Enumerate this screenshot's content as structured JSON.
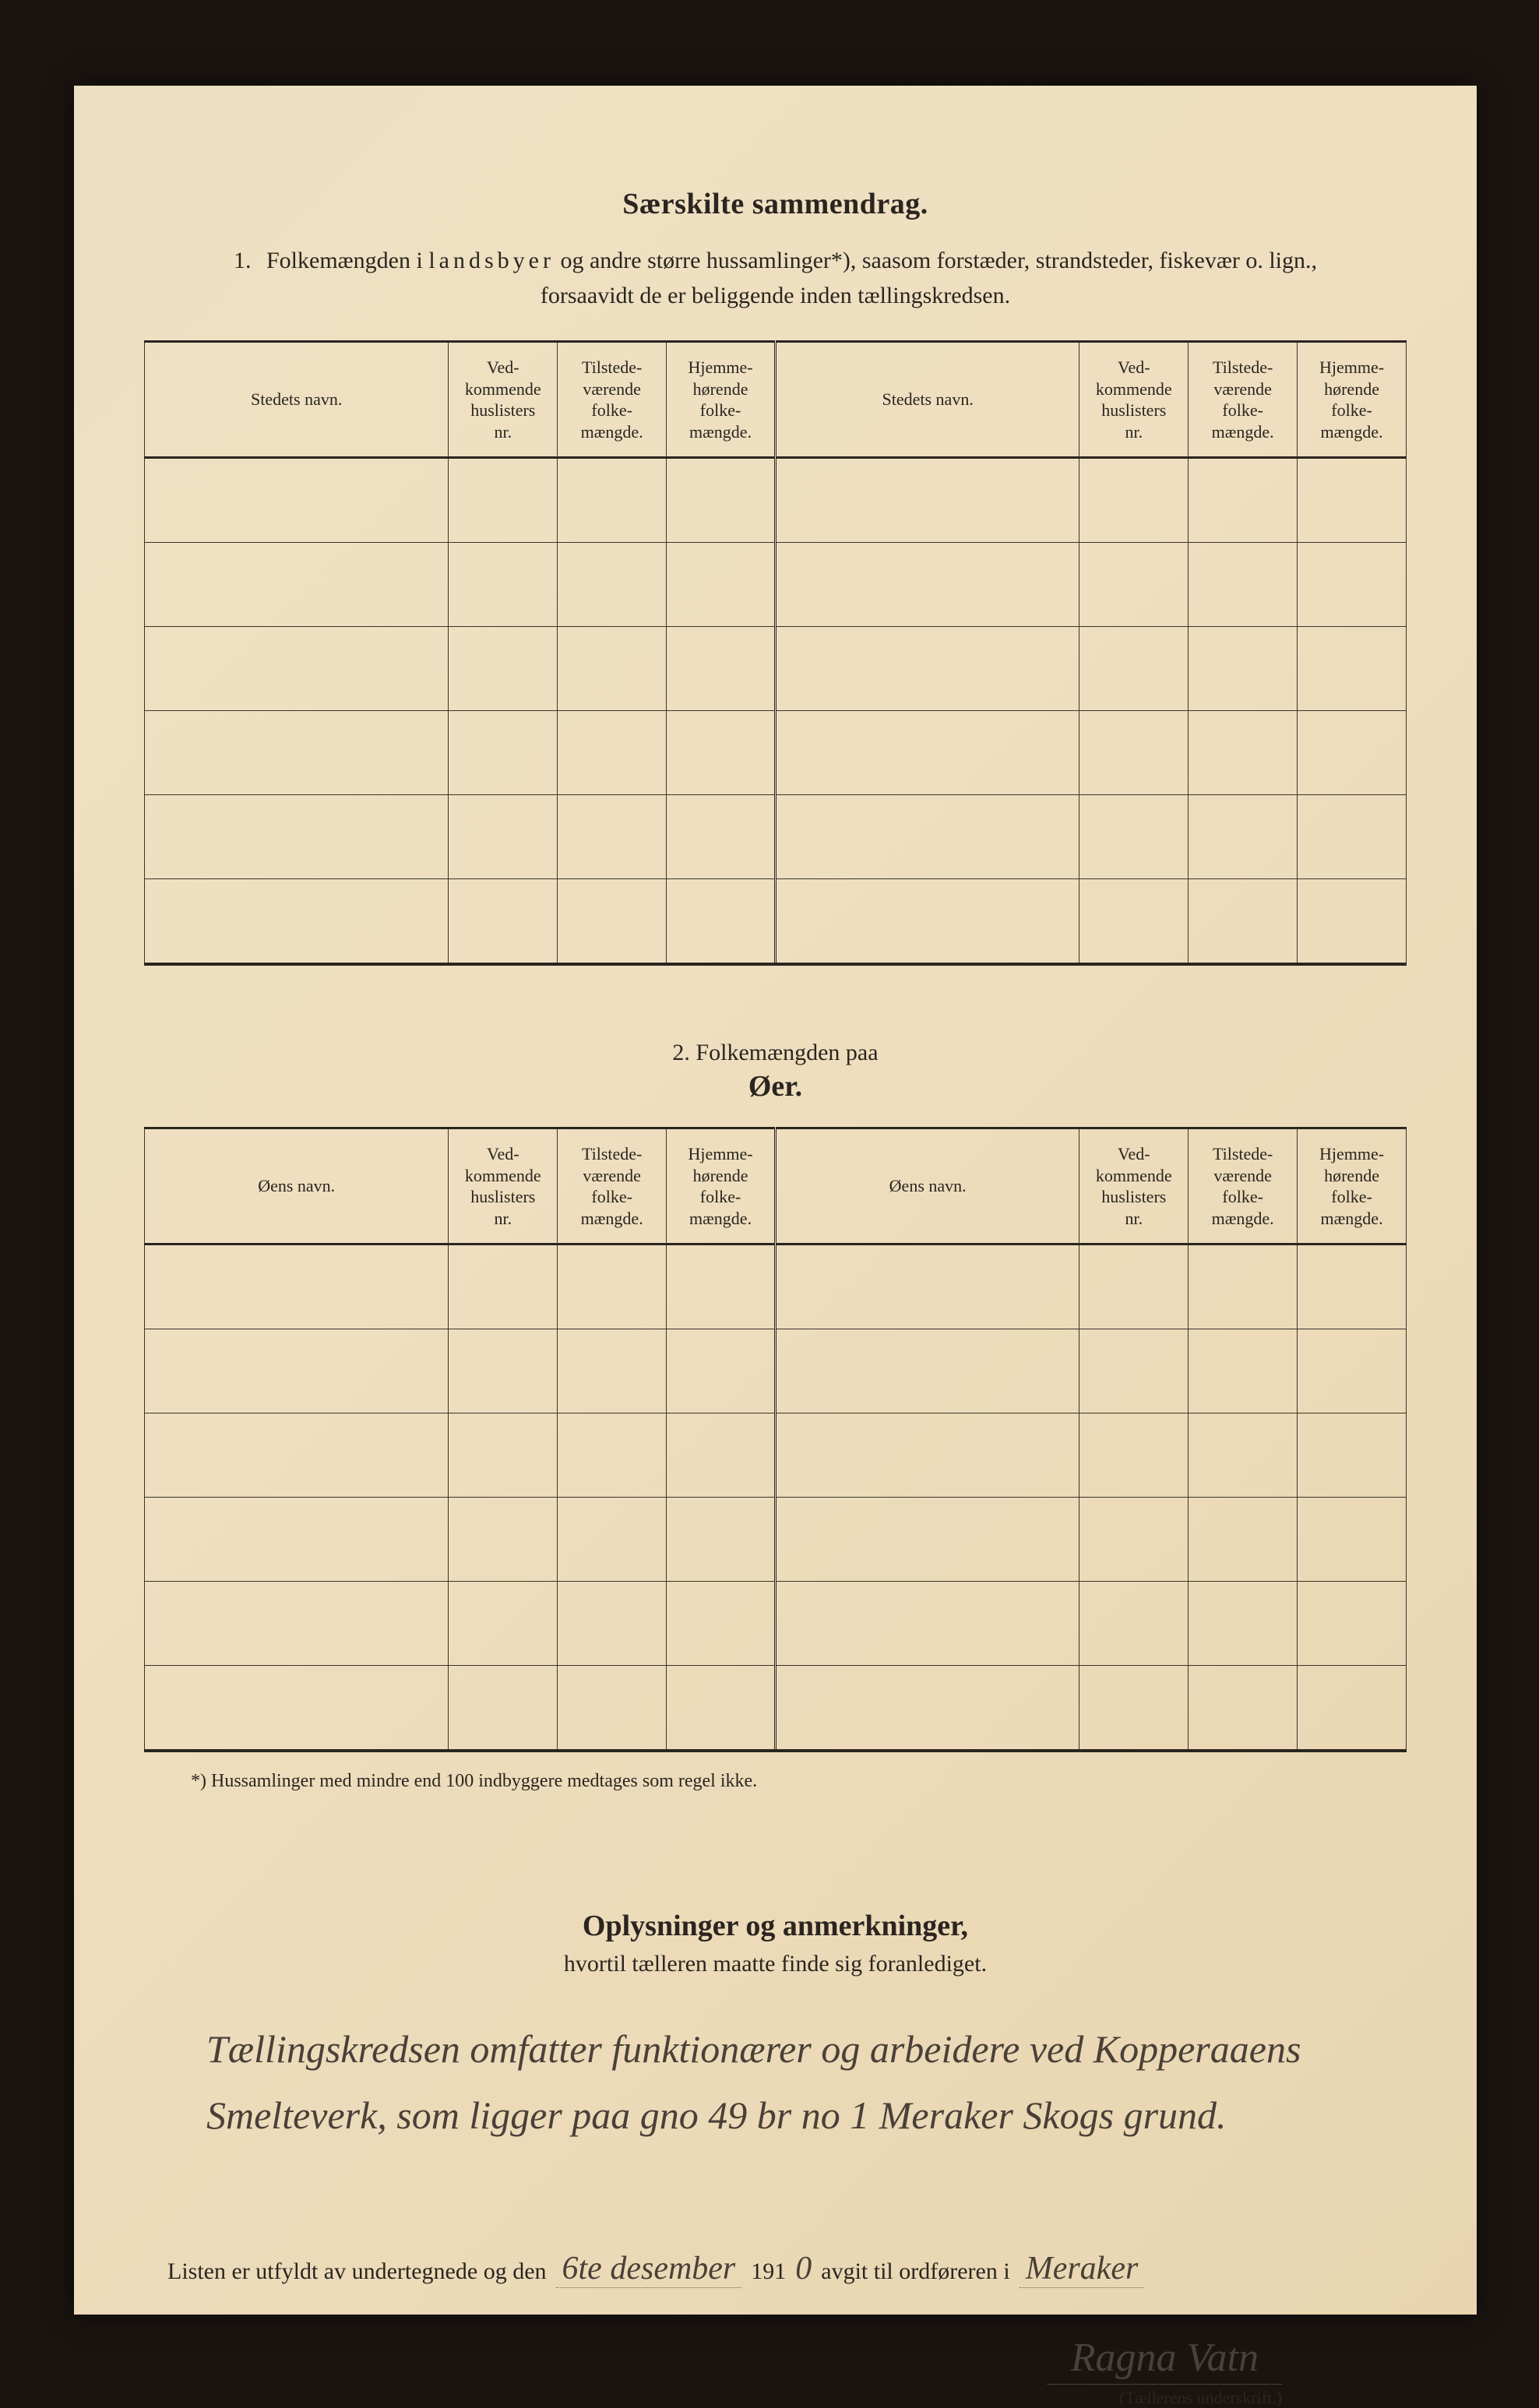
{
  "doc": {
    "title": "Særskilte sammendrag.",
    "section1": {
      "prefix": "1.",
      "line1_a": "Folkemængden i ",
      "line1_b_spaced": "landsbyer",
      "line1_c": " og andre større hussamlinger*), saasom forstæder, strandsteder, fiskevær o. lign.,",
      "line2": "forsaavidt de er beliggende inden tællingskredsen."
    },
    "table_headers": {
      "stedets_navn": "Stedets navn.",
      "vedkommende": "Ved-\nkommende\nhuslisters\nnr.",
      "tilstede": "Tilstede-\nværende\nfolke-\nmængde.",
      "hjemme": "Hjemme-\nhørende\nfolke-\nmængde.",
      "oens_navn": "Øens navn."
    },
    "table1_rows": 6,
    "section2": {
      "line1": "2.   Folkemængden paa",
      "line2": "Øer."
    },
    "table2_rows": 6,
    "footnote": "*) Hussamlinger med mindre end 100 indbyggere medtages som regel ikke.",
    "section3": {
      "title": "Oplysninger og anmerkninger,",
      "sub": "hvortil tælleren maatte finde sig foranlediget."
    },
    "handwriting": "Tællingskredsen omfatter funktionærer og arbeidere ved Kopperaaens Smelteverk, som ligger paa gno 49 br no 1 Meraker Skogs grund.",
    "signature": {
      "pre1": "Listen er utfyldt av undertegnede og den",
      "date": "6te desember",
      "year_printed": "191",
      "year_hw": "0",
      "mid": "avgit til ordføreren i",
      "place": "Meraker",
      "name": "Ragna Vatn",
      "label": "(Tællerens underskrift.)"
    },
    "colors": {
      "paper_bg": "#efdfc0",
      "ink": "#2a2520",
      "rule": "#3a332c",
      "handwriting": "#4a4038",
      "frame": "#1a1410"
    },
    "typography": {
      "title_fontsize_pt": 28,
      "body_fontsize_pt": 22,
      "footnote_fontsize_pt": 18,
      "handwriting_family": "cursive"
    }
  }
}
